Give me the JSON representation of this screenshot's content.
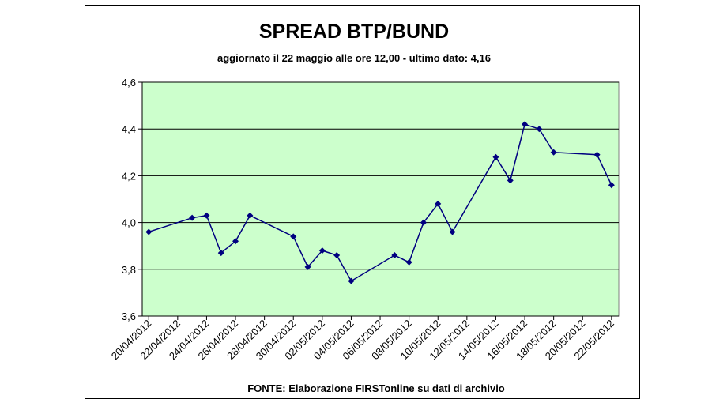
{
  "chart_data": {
    "type": "line",
    "title": "SPREAD BTP/BUND",
    "subtitle": "aggiornato il 22 maggio alle ore 12,00 - ultimo dato: 4,16",
    "source": "FONTE: Elaborazione FIRSTonline su dati di archivio",
    "x": [
      "20/04/2012",
      "23/04/2012",
      "24/04/2012",
      "25/04/2012",
      "26/04/2012",
      "27/04/2012",
      "30/04/2012",
      "01/05/2012",
      "02/05/2012",
      "03/05/2012",
      "04/05/2012",
      "07/05/2012",
      "08/05/2012",
      "09/05/2012",
      "10/05/2012",
      "11/05/2012",
      "14/05/2012",
      "15/05/2012",
      "16/05/2012",
      "17/05/2012",
      "18/05/2012",
      "21/05/2012",
      "22/05/2012"
    ],
    "series": [
      {
        "color": "#000080",
        "values": [
          3.96,
          4.02,
          4.03,
          3.87,
          3.92,
          4.03,
          3.94,
          3.81,
          3.88,
          3.86,
          3.75,
          3.86,
          3.83,
          4.0,
          4.08,
          3.96,
          4.28,
          4.18,
          4.42,
          4.4,
          4.3,
          4.29,
          4.16
        ]
      }
    ],
    "xlim": [
      "20/04/2012",
      "22/05/2012"
    ],
    "xticks": [
      "20/04/2012",
      "22/04/2012",
      "24/04/2012",
      "26/04/2012",
      "28/04/2012",
      "30/04/2012",
      "02/05/2012",
      "04/05/2012",
      "06/05/2012",
      "08/05/2012",
      "10/05/2012",
      "12/05/2012",
      "14/05/2012",
      "16/05/2012",
      "18/05/2012",
      "20/05/2012",
      "22/05/2012"
    ],
    "ylim": [
      3.6,
      4.6
    ],
    "yticks": [
      {
        "value": 3.6,
        "label": "3,6"
      },
      {
        "value": 3.8,
        "label": "3,8"
      },
      {
        "value": 4.0,
        "label": "4,0"
      },
      {
        "value": 4.2,
        "label": "4,2"
      },
      {
        "value": 4.4,
        "label": "4,4"
      },
      {
        "value": 4.6,
        "label": "4,6"
      }
    ],
    "grid": true,
    "plot_background": "#ccffcc"
  }
}
